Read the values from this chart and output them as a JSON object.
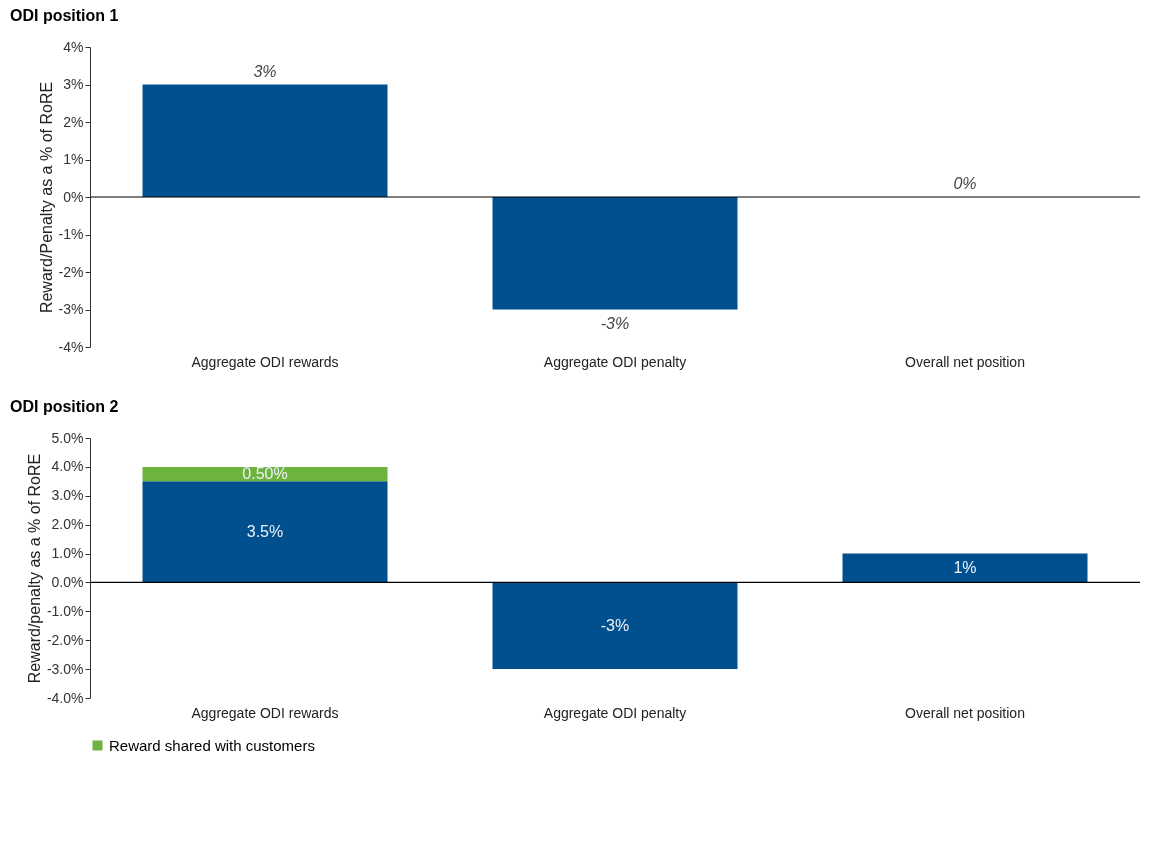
{
  "chart_data": [
    {
      "type": "bar",
      "title": "ODI position 1",
      "ylabel": "Reward/Penalty as a % of RoRE",
      "categories": [
        "Aggregate ODI rewards",
        "Aggregate ODI penalty",
        "Overall net position"
      ],
      "series": [
        {
          "color": "#00508f",
          "values": [
            3,
            -3,
            0
          ],
          "value_labels": [
            "3%",
            "-3%",
            "0%"
          ]
        }
      ],
      "ylim": [
        -4,
        4
      ],
      "yticks": [
        {
          "value": -4,
          "label": "-4%"
        },
        {
          "value": -3,
          "label": "-3%"
        },
        {
          "value": -2,
          "label": "-2%"
        },
        {
          "value": -1,
          "label": "-1%"
        },
        {
          "value": 0,
          "label": "0%"
        },
        {
          "value": 1,
          "label": "1%"
        },
        {
          "value": 2,
          "label": "2%"
        },
        {
          "value": 3,
          "label": "3%"
        },
        {
          "value": 4,
          "label": "4%"
        }
      ],
      "ref_lines": [
        {
          "axis": "y",
          "value": 0,
          "color": "#000000",
          "line_style": "solid"
        }
      ],
      "grid": false,
      "legend": false
    },
    {
      "type": "bar",
      "title": "ODI position 2",
      "ylabel": "Reward/penalty as a % of RoRE",
      "categories": [
        "Aggregate ODI rewards",
        "Aggregate ODI penalty",
        "Overall net position"
      ],
      "stacked": true,
      "series": [
        {
          "color": "#00508f",
          "values": [
            3.5,
            -3,
            1
          ],
          "value_labels": [
            "3.5%",
            "-3%",
            "1%"
          ]
        },
        {
          "name": "Reward shared with customers",
          "color": "#6db33f",
          "values": [
            0.5,
            null,
            null
          ],
          "value_labels": [
            "0.50%",
            null,
            null
          ]
        }
      ],
      "ylim": [
        -4,
        5
      ],
      "yticks": [
        {
          "value": -4,
          "label": "-4.0%"
        },
        {
          "value": -3,
          "label": "-3.0%"
        },
        {
          "value": -2,
          "label": "-2.0%"
        },
        {
          "value": -1,
          "label": "-1.0%"
        },
        {
          "value": 0,
          "label": "0.0%"
        },
        {
          "value": 1,
          "label": "1.0%"
        },
        {
          "value": 2,
          "label": "2.0%"
        },
        {
          "value": 3,
          "label": "3.0%"
        },
        {
          "value": 4,
          "label": "4.0%"
        },
        {
          "value": 5,
          "label": "5.0%"
        }
      ],
      "ref_lines": [
        {
          "axis": "y",
          "value": 0,
          "color": "#000000",
          "line_style": "solid"
        }
      ],
      "grid": false,
      "legend": "bottom"
    }
  ]
}
